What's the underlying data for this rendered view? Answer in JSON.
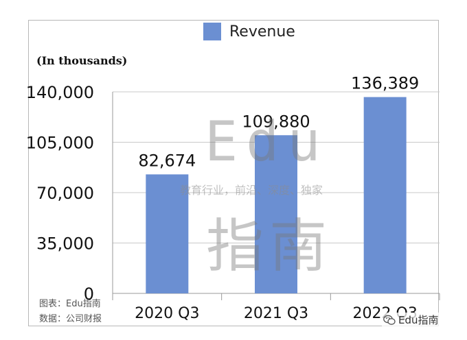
{
  "chart_data": {
    "type": "bar",
    "categories": [
      "2020 Q3",
      "2021 Q3",
      "2022 Q3"
    ],
    "series": [
      {
        "name": "Revenue",
        "values": [
          82674,
          109880,
          136389
        ]
      }
    ],
    "value_labels": [
      "82,674",
      "109,880",
      "136,389"
    ],
    "ylim": [
      0,
      140000
    ],
    "yticks": [
      0,
      35000,
      70000,
      105000,
      140000
    ],
    "ytick_labels": [
      "0",
      "35,000",
      "70,000",
      "105,000",
      "140,000"
    ],
    "unit_label": "(In thousands)",
    "legend_position": "top",
    "grid": true,
    "colors": {
      "bar": "#6b8fd2",
      "grid": "#c8c8c8",
      "axis": "#9a9a9a"
    }
  },
  "footnotes": {
    "chart_by": "图表：Edu指南",
    "source": "数据：公司财报"
  },
  "watermark": {
    "latin": "Edu",
    "cn": "指南",
    "slogan": "教育行业，前沿、深度、独家"
  },
  "brand": {
    "label": "Edu指南",
    "icon": "wechat-icon"
  }
}
